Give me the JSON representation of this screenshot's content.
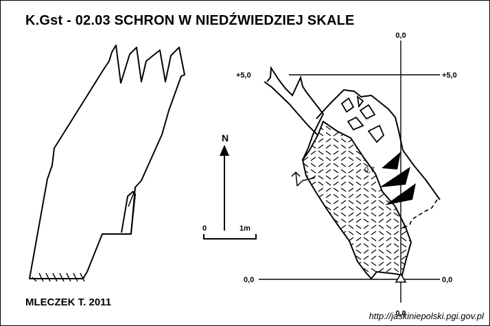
{
  "title": "K.Gst - 02.03  SCHRON W NIEDŹWIEDZIEJ SKALE",
  "author": "MLECZEK T. 2011",
  "source_url": "http://jaskiniepolski.pgi.gov.pl",
  "north_label": "N",
  "scale_bar": {
    "start_label": "0",
    "end_label": "1m"
  },
  "profile_labels": {
    "top_axis": "0,0",
    "upper_left": "+5,0",
    "upper_right": "+5,0",
    "lower_left": "0,0",
    "lower_right": "0,0",
    "bottom_axis": "0,0",
    "spot_height": "0,7"
  },
  "colors": {
    "ink": "#000000",
    "background": "#ffffff"
  }
}
